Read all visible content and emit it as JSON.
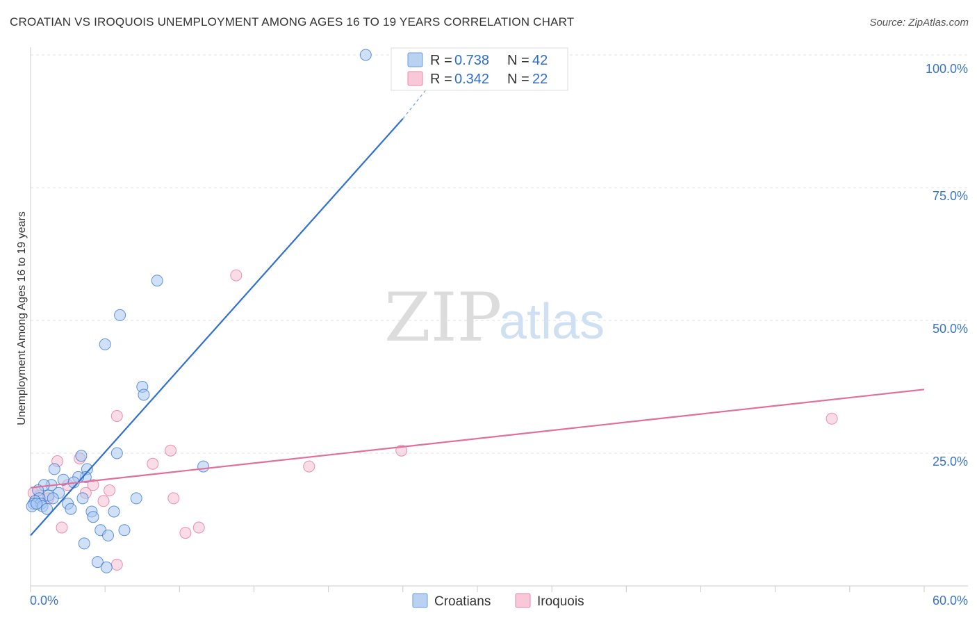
{
  "header": {
    "title": "CROATIAN VS IROQUOIS UNEMPLOYMENT AMONG AGES 16 TO 19 YEARS CORRELATION CHART",
    "source": "Source: ZipAtlas.com"
  },
  "watermark": {
    "zip": "ZIP",
    "atlas": "atlas"
  },
  "legend": {
    "rows": [
      {
        "r_label": "R = ",
        "r_value": "0.738",
        "n_label": "N = ",
        "n_value": "42"
      },
      {
        "r_label": "R = ",
        "r_value": "0.342",
        "n_label": "N = ",
        "n_value": "22"
      }
    ]
  },
  "bottom_legend": [
    "Croatians",
    "Iroquois"
  ],
  "chart_data": {
    "type": "scatter",
    "title": "CROATIAN VS IROQUOIS UNEMPLOYMENT AMONG AGES 16 TO 19 YEARS CORRELATION CHART",
    "xlabel": "",
    "ylabel": "Unemployment Among Ages 16 to 19 years",
    "xlim": [
      0,
      60
    ],
    "ylim": [
      0,
      100
    ],
    "x_tick_labels": [
      "0.0%",
      "60.0%"
    ],
    "y_tick_labels": [
      "100.0%",
      "75.0%",
      "50.0%",
      "25.0%"
    ],
    "y_ticks": [
      100,
      75,
      50,
      25
    ],
    "colors": {
      "croatians": "#2f6fd0",
      "iroquois": "#e0709a",
      "croatians_fill": "#a9c8f0",
      "iroquois_fill": "#f6bfd1"
    },
    "series": [
      {
        "name": "Croatians",
        "R": 0.738,
        "N": 42,
        "trendline": {
          "x": [
            0,
            25
          ],
          "y": [
            9.5,
            88
          ],
          "dashed_to": [
            27,
            95
          ]
        },
        "points": [
          [
            22.5,
            100
          ],
          [
            8.5,
            57.5
          ],
          [
            6,
            51
          ],
          [
            5,
            45.5
          ],
          [
            7.5,
            37.5
          ],
          [
            7.6,
            36
          ],
          [
            5.8,
            25
          ],
          [
            11.6,
            22.5
          ],
          [
            3.4,
            24.5
          ],
          [
            1.6,
            22
          ],
          [
            3.8,
            22
          ],
          [
            3.7,
            20.5
          ],
          [
            2.2,
            20
          ],
          [
            3.2,
            20.5
          ],
          [
            1.4,
            19
          ],
          [
            0.9,
            19
          ],
          [
            2.9,
            19.5
          ],
          [
            0.5,
            18
          ],
          [
            1.9,
            17.5
          ],
          [
            1.2,
            17
          ],
          [
            0.6,
            16.5
          ],
          [
            0.3,
            16
          ],
          [
            1.5,
            16.5
          ],
          [
            0.2,
            15.5
          ],
          [
            0.7,
            15.5
          ],
          [
            0.1,
            15
          ],
          [
            2.5,
            15.5
          ],
          [
            0.8,
            15
          ],
          [
            3.5,
            16.5
          ],
          [
            7.1,
            16.5
          ],
          [
            1.1,
            14.5
          ],
          [
            2.7,
            14.5
          ],
          [
            5.6,
            14
          ],
          [
            4.1,
            14
          ],
          [
            4.2,
            13
          ],
          [
            4.7,
            10.5
          ],
          [
            6.3,
            10.5
          ],
          [
            5.2,
            9.5
          ],
          [
            3.6,
            8
          ],
          [
            4.5,
            4.5
          ],
          [
            5.1,
            3.5
          ],
          [
            0.4,
            15.5
          ]
        ]
      },
      {
        "name": "Iroquois",
        "R": 0.342,
        "N": 22,
        "trendline": {
          "x": [
            0,
            60
          ],
          "y": [
            18.5,
            37
          ]
        },
        "points": [
          [
            13.8,
            58.5
          ],
          [
            5.8,
            32
          ],
          [
            53.8,
            31.5
          ],
          [
            9.4,
            25.5
          ],
          [
            24.9,
            25.5
          ],
          [
            3.3,
            24
          ],
          [
            1.8,
            23.5
          ],
          [
            8.2,
            23
          ],
          [
            18.7,
            22.5
          ],
          [
            2.5,
            19
          ],
          [
            4.2,
            19
          ],
          [
            0.2,
            17.5
          ],
          [
            5.3,
            18
          ],
          [
            3.7,
            17.5
          ],
          [
            0.6,
            17
          ],
          [
            1.2,
            16.5
          ],
          [
            9.6,
            16.5
          ],
          [
            4.9,
            16
          ],
          [
            2.1,
            11
          ],
          [
            11.3,
            11
          ],
          [
            10.4,
            10
          ],
          [
            5.8,
            4
          ]
        ]
      }
    ]
  }
}
